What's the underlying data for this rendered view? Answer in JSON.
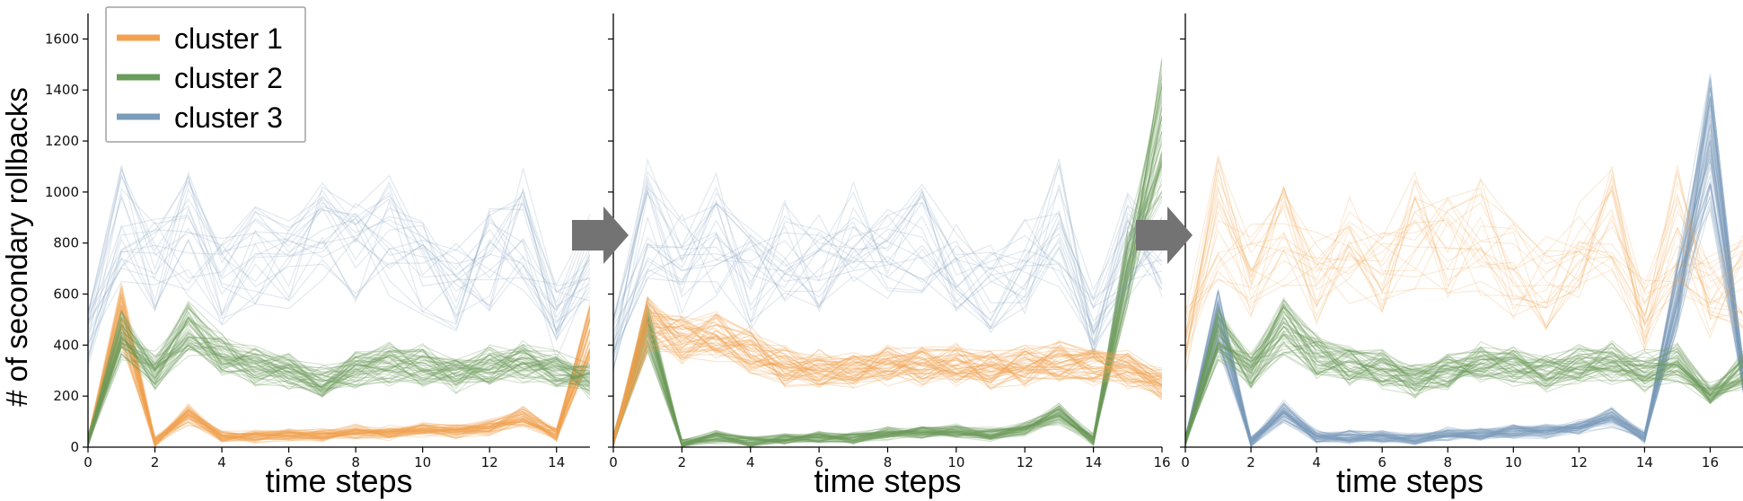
{
  "chart_data": {
    "type": "line",
    "ylabel": "# of secondary rollbacks",
    "legend": {
      "placement": "top-left",
      "entries": [
        {
          "name": "cluster 1",
          "color": "#f2a24f"
        },
        {
          "name": "cluster 2",
          "color": "#6a9c5b"
        },
        {
          "name": "cluster 3",
          "color": "#7b9cba"
        }
      ]
    },
    "panels": [
      {
        "xlabel": "time steps",
        "xlim": [
          0,
          15
        ],
        "xticks": [
          0,
          2,
          4,
          6,
          8,
          10,
          12,
          14
        ],
        "ylim": [
          0,
          1700
        ],
        "yticks": [
          0,
          200,
          400,
          600,
          800,
          1000,
          1200,
          1400,
          1600
        ],
        "series": [
          {
            "name": "cluster 1",
            "x": [
              0,
              1,
              2,
              3,
              4,
              5,
              6,
              7,
              8,
              9,
              10,
              11,
              12,
              13,
              14,
              15
            ],
            "values": [
              25,
              520,
              20,
              130,
              40,
              40,
              50,
              45,
              60,
              55,
              70,
              60,
              80,
              120,
              50,
              450
            ]
          },
          {
            "name": "cluster 2",
            "x": [
              0,
              1,
              2,
              3,
              4,
              5,
              6,
              7,
              8,
              9,
              10,
              11,
              12,
              13,
              14,
              15
            ],
            "values": [
              25,
              440,
              300,
              470,
              360,
              320,
              300,
              260,
              300,
              330,
              320,
              290,
              320,
              330,
              300,
              260
            ]
          },
          {
            "name": "cluster 3",
            "x": [
              0,
              1,
              2,
              3,
              4,
              5,
              6,
              7,
              8,
              9,
              10,
              11,
              12,
              13,
              14,
              15
            ],
            "values": [
              420,
              880,
              700,
              830,
              660,
              760,
              720,
              850,
              760,
              820,
              700,
              620,
              740,
              880,
              500,
              720
            ]
          }
        ]
      },
      {
        "xlabel": "time steps",
        "xlim": [
          0,
          16
        ],
        "xticks": [
          0,
          2,
          4,
          6,
          8,
          10,
          12,
          14,
          16
        ],
        "ylim": [
          0,
          1700
        ],
        "series": [
          {
            "name": "cluster 1",
            "x": [
              0,
              1,
              2,
              3,
              4,
              5,
              6,
              7,
              8,
              9,
              10,
              11,
              12,
              13,
              14,
              15,
              16
            ],
            "values": [
              25,
              480,
              420,
              440,
              380,
              320,
              310,
              300,
              330,
              320,
              320,
              300,
              320,
              340,
              320,
              300,
              250
            ]
          },
          {
            "name": "cluster 2",
            "x": [
              0,
              1,
              2,
              3,
              4,
              5,
              6,
              7,
              8,
              9,
              10,
              11,
              12,
              13,
              14,
              15,
              16
            ],
            "values": [
              25,
              480,
              10,
              40,
              20,
              30,
              40,
              35,
              55,
              60,
              60,
              50,
              70,
              130,
              30,
              700,
              1250
            ]
          },
          {
            "name": "cluster 3",
            "x": [
              0,
              1,
              2,
              3,
              4,
              5,
              6,
              7,
              8,
              9,
              10,
              11,
              12,
              13,
              14,
              15,
              16
            ],
            "values": [
              420,
              880,
              700,
              830,
              660,
              760,
              720,
              850,
              760,
              820,
              700,
              620,
              740,
              880,
              500,
              800,
              760
            ]
          }
        ]
      },
      {
        "xlabel": "time steps",
        "xlim": [
          0,
          17
        ],
        "xticks": [
          0,
          2,
          4,
          6,
          8,
          10,
          12,
          14,
          16
        ],
        "ylim": [
          0,
          1700
        ],
        "series": [
          {
            "name": "cluster 1",
            "x": [
              0,
              1,
              2,
              3,
              4,
              5,
              6,
              7,
              8,
              9,
              10,
              11,
              12,
              13,
              14,
              15,
              16,
              17
            ],
            "values": [
              420,
              900,
              700,
              830,
              680,
              760,
              720,
              860,
              780,
              820,
              700,
              640,
              760,
              880,
              520,
              860,
              600,
              650
            ]
          },
          {
            "name": "cluster 2",
            "x": [
              0,
              1,
              2,
              3,
              4,
              5,
              6,
              7,
              8,
              9,
              10,
              11,
              12,
              13,
              14,
              15,
              16,
              17
            ],
            "values": [
              25,
              440,
              300,
              470,
              360,
              320,
              300,
              260,
              300,
              330,
              320,
              290,
              320,
              330,
              300,
              330,
              200,
              300
            ]
          },
          {
            "name": "cluster 3",
            "x": [
              0,
              1,
              2,
              3,
              4,
              5,
              6,
              7,
              8,
              9,
              10,
              11,
              12,
              13,
              14,
              15,
              16,
              17
            ],
            "values": [
              25,
              500,
              20,
              140,
              40,
              40,
              40,
              30,
              50,
              50,
              60,
              60,
              80,
              120,
              40,
              600,
              1200,
              280
            ]
          }
        ]
      }
    ]
  }
}
